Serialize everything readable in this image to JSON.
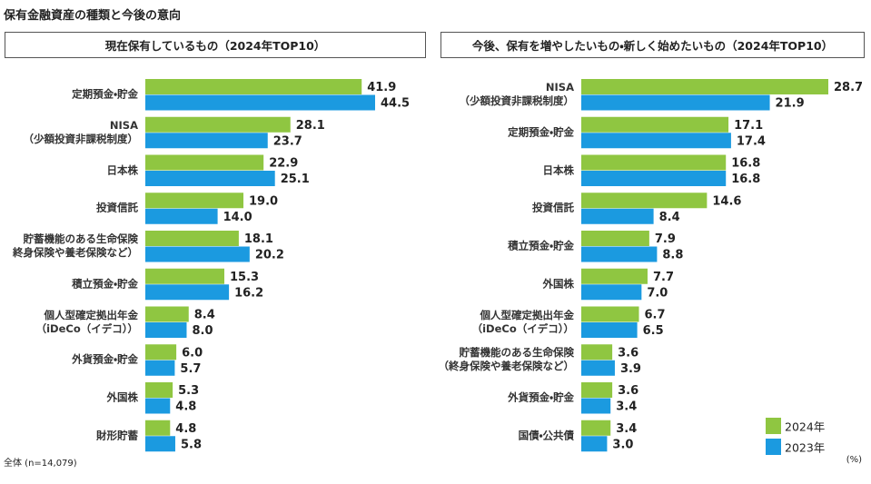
{
  "title": "保有金融資産の種類と今後の意向",
  "note": "全体 (n=14,079)",
  "unit": "(%)",
  "chart_data": [
    {
      "type": "bar",
      "orientation": "horizontal",
      "title": "現在保有しているもの（2024年TOP10）",
      "categories": [
        "定期預金・貯金",
        "NISA\n（少額投資非課税制度）",
        "日本株",
        "投資信託",
        "貯蓄機能のある生命保険\n終身保険や養老保険など）",
        "積立預金・貯金",
        "個人型確定拠出年金\n（iDeCo（イデコ））",
        "外貨預金・貯金",
        "外国株",
        "財形貯蓄"
      ],
      "series": [
        {
          "color": "#8fc641",
          "values": [
            41.9,
            28.1,
            22.9,
            19.0,
            18.1,
            15.3,
            8.4,
            6.0,
            5.3,
            4.8
          ],
          "value_labels": [
            "41.9",
            "28.1",
            "22.9",
            "19.0",
            "18.1",
            "15.3",
            "8.4",
            "6.0",
            "5.3",
            "4.8"
          ]
        },
        {
          "color": "#1b9ae0",
          "values": [
            44.5,
            23.7,
            25.1,
            14.0,
            20.2,
            16.2,
            8.0,
            5.7,
            4.8,
            5.8
          ],
          "value_labels": [
            "44.5",
            "23.7",
            "25.1",
            "14.0",
            "20.2",
            "16.2",
            "8.0",
            "5.7",
            "4.8",
            "5.8"
          ]
        }
      ]
    },
    {
      "type": "bar",
      "orientation": "horizontal",
      "title": "今後、保有を増やしたいもの・新しく始めたいもの（2024年TOP10）",
      "categories": [
        "NISA\n（少額投資非課税制度）",
        "定期預金・貯金",
        "日本株",
        "投資信託",
        "積立預金・貯金",
        "外国株",
        "個人型確定拠出年金\n（iDeCo（イデコ））",
        "貯蓄機能のある生命保険\n（終身保険や養老保険など）",
        "外貨預金・貯金",
        "国債・公共債"
      ],
      "series": [
        {
          "name": "2024年",
          "color": "#8fc641",
          "values": [
            28.7,
            17.1,
            16.8,
            14.6,
            7.9,
            7.7,
            6.7,
            3.6,
            3.6,
            3.4
          ],
          "value_labels": [
            "28.7",
            "17.1",
            "16.8",
            "14.6",
            "7.9",
            "7.7",
            "6.7",
            "3.6",
            "3.6",
            "3.4"
          ]
        },
        {
          "name": "2023年",
          "color": "#1b9ae0",
          "values": [
            21.9,
            17.4,
            16.8,
            8.4,
            8.8,
            7.0,
            6.5,
            3.9,
            3.4,
            3.0
          ],
          "value_labels": [
            "21.9",
            "17.4",
            "16.8",
            "8.4",
            "8.8",
            "7.0",
            "6.5",
            "3.9",
            "3.4",
            "3.0"
          ]
        }
      ]
    }
  ]
}
